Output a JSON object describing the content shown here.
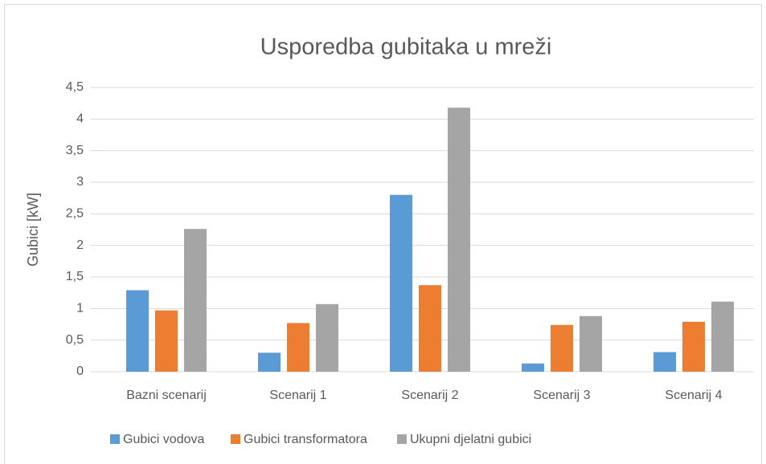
{
  "chart_data": {
    "type": "bar",
    "title": "Usporedba gubitaka u mreži",
    "y_label": "Gubici [kW]",
    "categories": [
      "Bazni scenarij",
      "Scenarij 1",
      "Scenarij 2",
      "Scenarij 3",
      "Scenarij 4"
    ],
    "series": [
      {
        "name": "Gubici vodova",
        "color": "#5b9bd5",
        "values": [
          1.29,
          0.3,
          2.8,
          0.13,
          0.31
        ]
      },
      {
        "name": "Gubici transformatora",
        "color": "#ed7d31",
        "values": [
          0.97,
          0.77,
          1.37,
          0.74,
          0.79
        ]
      },
      {
        "name": "Ukupni djelatni gubici",
        "color": "#a5a5a5",
        "values": [
          2.26,
          1.07,
          4.18,
          0.88,
          1.11
        ]
      }
    ],
    "ylim": [
      0,
      4.5
    ],
    "yticks": [
      0,
      {
        "value": 0.5,
        "label": "0,5"
      },
      1,
      {
        "value": 1.5,
        "label": "1,5"
      },
      2,
      {
        "value": 2.5,
        "label": "2,5"
      },
      3,
      {
        "value": 3.5,
        "label": "3,5"
      },
      4,
      {
        "value": 4.5,
        "label": "4,5"
      }
    ],
    "grid": true,
    "legend": "bottom"
  }
}
